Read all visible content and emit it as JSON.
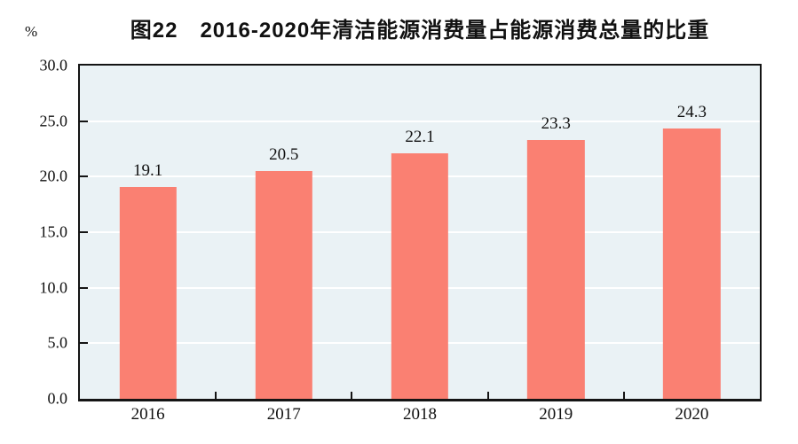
{
  "figure": {
    "title": "图22　2016-2020年清洁能源消费量占能源消费总量的比重",
    "y_unit_label": "%"
  },
  "chart_data": {
    "type": "bar",
    "title": "图22　2016-2020年清洁能源消费量占能源消费总量的比重",
    "categories": [
      "2016",
      "2017",
      "2018",
      "2019",
      "2020"
    ],
    "values": [
      19.1,
      20.5,
      22.1,
      23.3,
      24.3
    ],
    "value_labels": [
      "19.1",
      "20.5",
      "22.1",
      "23.3",
      "24.3"
    ],
    "series_name": "清洁能源消费量占能源消费总量的比重",
    "xlabel": "",
    "ylabel": "%",
    "ylim": [
      0,
      30
    ],
    "yticks": [
      0,
      5,
      10,
      15,
      20,
      25,
      30
    ],
    "ytick_labels": [
      "0.0",
      "5.0",
      "10.0",
      "15.0",
      "20.0",
      "25.0",
      "30.0"
    ],
    "grid": "horizontal",
    "legend": "none",
    "colors": {
      "bar_fill": "#FA8072",
      "plot_background": "#EAF2F5",
      "gridline": "#FFFFFF",
      "axis_border": "#141414",
      "text": "#111111",
      "page_background": "#FFFFFF"
    }
  }
}
